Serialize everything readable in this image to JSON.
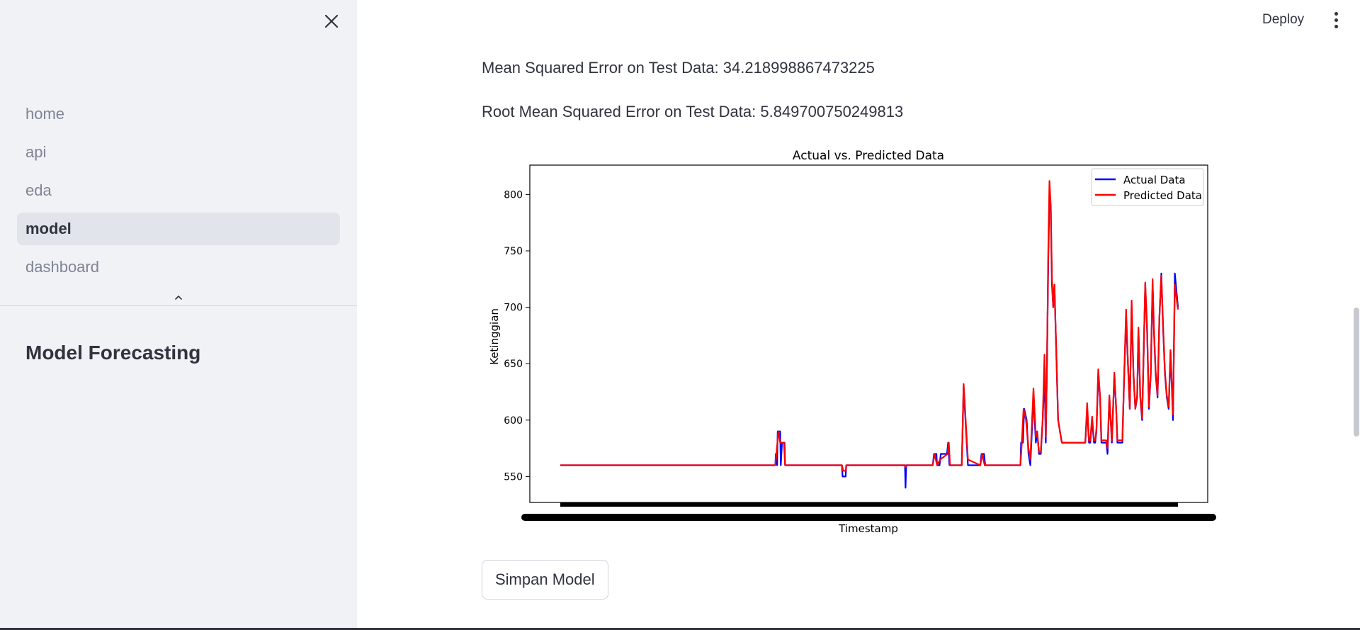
{
  "sidebar": {
    "nav": [
      {
        "label": "home",
        "active": false
      },
      {
        "label": "api",
        "active": false
      },
      {
        "label": "eda",
        "active": false
      },
      {
        "label": "model",
        "active": true
      },
      {
        "label": "dashboard",
        "active": false
      }
    ],
    "heading": "Model Forecasting",
    "icons": {
      "close": "close-icon",
      "collapse": "chevron-up-icon"
    }
  },
  "header": {
    "deploy_label": "Deploy",
    "menu_icon": "vertical-dots-icon"
  },
  "main": {
    "mse_text": "Mean Squared Error on Test Data: 34.218998867473225",
    "rmse_text": "Root Mean Squared Error on Test Data: 5.849700750249813",
    "save_label": "Simpan Model"
  },
  "chart_data": {
    "type": "line",
    "title": "Actual vs. Predicted Data",
    "xlabel": "Timestamp",
    "ylabel": "Ketinggian",
    "ylim": [
      527,
      826
    ],
    "yticks": [
      550,
      600,
      650,
      700,
      750,
      800
    ],
    "legend_placement": "top-right",
    "grid": false,
    "series": [
      {
        "name": "Actual Data",
        "color": "#0000ff",
        "points": [
          [
            0,
            560
          ],
          [
            0.348,
            560
          ],
          [
            0.349,
            570
          ],
          [
            0.351,
            560
          ],
          [
            0.352,
            590
          ],
          [
            0.356,
            590
          ],
          [
            0.357,
            560
          ],
          [
            0.359,
            580
          ],
          [
            0.363,
            580
          ],
          [
            0.364,
            560
          ],
          [
            0.456,
            560
          ],
          [
            0.457,
            550
          ],
          [
            0.462,
            550
          ],
          [
            0.463,
            560
          ],
          [
            0.558,
            560
          ],
          [
            0.559,
            540
          ],
          [
            0.56,
            560
          ],
          [
            0.603,
            560
          ],
          [
            0.605,
            570
          ],
          [
            0.609,
            570
          ],
          [
            0.61,
            560
          ],
          [
            0.614,
            560
          ],
          [
            0.616,
            570
          ],
          [
            0.626,
            570
          ],
          [
            0.628,
            580
          ],
          [
            0.63,
            560
          ],
          [
            0.65,
            560
          ],
          [
            0.653,
            630
          ],
          [
            0.66,
            560
          ],
          [
            0.68,
            560
          ],
          [
            0.682,
            570
          ],
          [
            0.686,
            570
          ],
          [
            0.688,
            560
          ],
          [
            0.745,
            560
          ],
          [
            0.746,
            580
          ],
          [
            0.749,
            580
          ],
          [
            0.751,
            610
          ],
          [
            0.755,
            600
          ],
          [
            0.758,
            570
          ],
          [
            0.761,
            560
          ],
          [
            0.766,
            620
          ],
          [
            0.77,
            580
          ],
          [
            0.772,
            590
          ],
          [
            0.775,
            570
          ],
          [
            0.778,
            570
          ],
          [
            0.781,
            600
          ],
          [
            0.784,
            640
          ],
          [
            0.786,
            580
          ],
          [
            0.788,
            650
          ],
          [
            0.79,
            740
          ],
          [
            0.792,
            800
          ],
          [
            0.794,
            790
          ],
          [
            0.796,
            720
          ],
          [
            0.798,
            700
          ],
          [
            0.8,
            720
          ],
          [
            0.803,
            660
          ],
          [
            0.806,
            600
          ],
          [
            0.809,
            590
          ],
          [
            0.812,
            580
          ],
          [
            0.85,
            580
          ],
          [
            0.853,
            610
          ],
          [
            0.856,
            580
          ],
          [
            0.858,
            580
          ],
          [
            0.861,
            600
          ],
          [
            0.864,
            580
          ],
          [
            0.866,
            580
          ],
          [
            0.868,
            590
          ],
          [
            0.871,
            640
          ],
          [
            0.874,
            620
          ],
          [
            0.876,
            580
          ],
          [
            0.88,
            580
          ],
          [
            0.884,
            580
          ],
          [
            0.886,
            570
          ],
          [
            0.889,
            620
          ],
          [
            0.891,
            600
          ],
          [
            0.893,
            580
          ],
          [
            0.897,
            640
          ],
          [
            0.9,
            610
          ],
          [
            0.902,
            580
          ],
          [
            0.91,
            580
          ],
          [
            0.913,
            640
          ],
          [
            0.916,
            690
          ],
          [
            0.919,
            650
          ],
          [
            0.922,
            610
          ],
          [
            0.925,
            700
          ],
          [
            0.928,
            640
          ],
          [
            0.931,
            610
          ],
          [
            0.934,
            620
          ],
          [
            0.936,
            680
          ],
          [
            0.939,
            620
          ],
          [
            0.942,
            600
          ],
          [
            0.945,
            670
          ],
          [
            0.947,
            720
          ],
          [
            0.95,
            680
          ],
          [
            0.953,
            610
          ],
          [
            0.956,
            640
          ],
          [
            0.959,
            720
          ],
          [
            0.961,
            680
          ],
          [
            0.964,
            640
          ],
          [
            0.967,
            620
          ],
          [
            0.97,
            690
          ],
          [
            0.973,
            730
          ],
          [
            0.976,
            680
          ],
          [
            0.979,
            640
          ],
          [
            0.982,
            620
          ],
          [
            0.985,
            610
          ],
          [
            0.988,
            660
          ],
          [
            0.99,
            630
          ],
          [
            0.992,
            600
          ],
          [
            0.995,
            730
          ],
          [
            1.0,
            700
          ]
        ]
      },
      {
        "name": "Predicted Data",
        "color": "#ff0000",
        "points": [
          [
            0,
            560
          ],
          [
            0.348,
            560
          ],
          [
            0.35,
            570
          ],
          [
            0.353,
            590
          ],
          [
            0.356,
            580
          ],
          [
            0.359,
            580
          ],
          [
            0.362,
            580
          ],
          [
            0.364,
            560
          ],
          [
            0.456,
            560
          ],
          [
            0.458,
            555
          ],
          [
            0.462,
            555
          ],
          [
            0.463,
            560
          ],
          [
            0.558,
            560
          ],
          [
            0.559,
            558
          ],
          [
            0.561,
            560
          ],
          [
            0.603,
            560
          ],
          [
            0.606,
            570
          ],
          [
            0.61,
            560
          ],
          [
            0.615,
            565
          ],
          [
            0.627,
            570
          ],
          [
            0.629,
            580
          ],
          [
            0.631,
            560
          ],
          [
            0.65,
            560
          ],
          [
            0.653,
            632
          ],
          [
            0.66,
            565
          ],
          [
            0.68,
            560
          ],
          [
            0.683,
            570
          ],
          [
            0.687,
            560
          ],
          [
            0.745,
            560
          ],
          [
            0.747,
            578
          ],
          [
            0.75,
            610
          ],
          [
            0.754,
            600
          ],
          [
            0.758,
            575
          ],
          [
            0.761,
            565
          ],
          [
            0.766,
            628
          ],
          [
            0.77,
            585
          ],
          [
            0.772,
            590
          ],
          [
            0.775,
            572
          ],
          [
            0.778,
            572
          ],
          [
            0.781,
            600
          ],
          [
            0.784,
            658
          ],
          [
            0.786,
            585
          ],
          [
            0.788,
            650
          ],
          [
            0.79,
            750
          ],
          [
            0.792,
            812
          ],
          [
            0.794,
            790
          ],
          [
            0.796,
            725
          ],
          [
            0.798,
            700
          ],
          [
            0.8,
            720
          ],
          [
            0.803,
            662
          ],
          [
            0.806,
            600
          ],
          [
            0.809,
            590
          ],
          [
            0.812,
            580
          ],
          [
            0.85,
            580
          ],
          [
            0.853,
            615
          ],
          [
            0.856,
            582
          ],
          [
            0.858,
            582
          ],
          [
            0.861,
            603
          ],
          [
            0.864,
            582
          ],
          [
            0.866,
            582
          ],
          [
            0.868,
            592
          ],
          [
            0.871,
            645
          ],
          [
            0.874,
            620
          ],
          [
            0.876,
            582
          ],
          [
            0.884,
            582
          ],
          [
            0.886,
            575
          ],
          [
            0.889,
            622
          ],
          [
            0.891,
            600
          ],
          [
            0.893,
            582
          ],
          [
            0.897,
            642
          ],
          [
            0.9,
            610
          ],
          [
            0.902,
            582
          ],
          [
            0.91,
            582
          ],
          [
            0.913,
            640
          ],
          [
            0.916,
            698
          ],
          [
            0.919,
            650
          ],
          [
            0.922,
            610
          ],
          [
            0.925,
            706
          ],
          [
            0.928,
            642
          ],
          [
            0.931,
            610
          ],
          [
            0.934,
            622
          ],
          [
            0.936,
            682
          ],
          [
            0.939,
            622
          ],
          [
            0.942,
            602
          ],
          [
            0.945,
            672
          ],
          [
            0.947,
            722
          ],
          [
            0.95,
            682
          ],
          [
            0.953,
            612
          ],
          [
            0.956,
            642
          ],
          [
            0.959,
            725
          ],
          [
            0.961,
            682
          ],
          [
            0.964,
            642
          ],
          [
            0.967,
            622
          ],
          [
            0.97,
            692
          ],
          [
            0.973,
            728
          ],
          [
            0.976,
            682
          ],
          [
            0.979,
            642
          ],
          [
            0.982,
            622
          ],
          [
            0.985,
            612
          ],
          [
            0.988,
            662
          ],
          [
            0.99,
            632
          ],
          [
            0.992,
            605
          ],
          [
            0.995,
            720
          ],
          [
            1.0,
            698
          ]
        ]
      }
    ]
  }
}
